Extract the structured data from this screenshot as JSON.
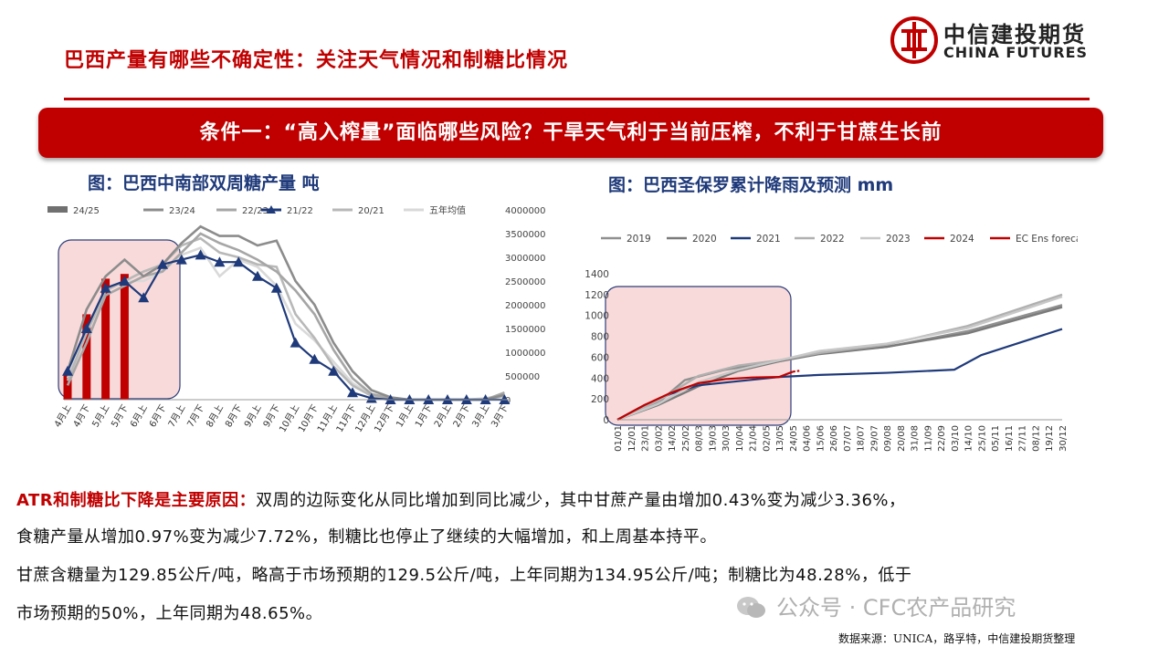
{
  "title": "巴西产量有哪些不确定性：关注天气情况和制糖比情况",
  "logo": {
    "cn": "中信建投期货",
    "en": "CHINA FUTURES"
  },
  "banner": "条件一：“高入榨量”面临哪些风险？干旱天气利于当前压榨，不利于甘蔗生长前",
  "colors": {
    "accent": "#c00000",
    "navy": "#1f3a7a",
    "highlight_fill": "#f9dada",
    "highlight_border": "#2c3e7a"
  },
  "chart_data": [
    {
      "type": "bar+line",
      "title": "图：巴西中南部双周糖产量 吨",
      "categories": [
        "4月上",
        "4月下",
        "5月上",
        "5月下",
        "6月上",
        "6月下",
        "7月上",
        "7月下",
        "8月上",
        "8月下",
        "9月上",
        "9月下",
        "10月上",
        "10月下",
        "11月上",
        "11月下",
        "12月上",
        "12月下",
        "1月上",
        "1月下",
        "2月上",
        "2月下",
        "3月上",
        "3月下"
      ],
      "ylim": [
        0,
        4000000
      ],
      "yticks": [
        "4000000",
        "3500000",
        "3000000",
        "2500000",
        "2000000",
        "1500000",
        "1000000",
        "500000",
        "0"
      ],
      "legend": [
        "24/25",
        "23/24",
        "22/23",
        "21/22",
        "20/21",
        "五年均值"
      ],
      "series": [
        {
          "name": "24/25",
          "kind": "bar",
          "color": "#c00000",
          "values": [
            550000,
            1800000,
            2550000,
            2650000,
            null,
            null,
            null,
            null,
            null,
            null,
            null,
            null,
            null,
            null,
            null,
            null,
            null,
            null,
            null,
            null,
            null,
            null,
            null,
            null
          ]
        },
        {
          "name": "23/24",
          "kind": "line",
          "color": "#8c8c8c",
          "values": [
            600000,
            1900000,
            2600000,
            2950000,
            2600000,
            2850000,
            3300000,
            3650000,
            3450000,
            3450000,
            3250000,
            3350000,
            2500000,
            2000000,
            1200000,
            600000,
            200000,
            50000,
            0,
            0,
            0,
            0,
            0,
            100000
          ]
        },
        {
          "name": "22/23",
          "kind": "line",
          "color": "#a6a6a6",
          "values": [
            300000,
            1200000,
            2200000,
            2400000,
            2600000,
            2700000,
            3100000,
            3500000,
            3300000,
            3150000,
            2950000,
            2700000,
            2300000,
            1800000,
            1050000,
            450000,
            120000,
            30000,
            0,
            0,
            0,
            0,
            0,
            150000
          ]
        },
        {
          "name": "21/22",
          "kind": "marker",
          "color": "#1f3a7a",
          "values": [
            600000,
            1500000,
            2350000,
            2500000,
            2150000,
            2850000,
            2950000,
            3050000,
            2900000,
            2900000,
            2600000,
            2350000,
            1200000,
            850000,
            600000,
            150000,
            30000,
            0,
            0,
            0,
            0,
            0,
            0,
            0
          ]
        },
        {
          "name": "20/21",
          "kind": "line",
          "color": "#b8b8b8",
          "values": [
            400000,
            1400000,
            2300000,
            2500000,
            2700000,
            2850000,
            3250000,
            3400000,
            3100000,
            3000000,
            2850000,
            2800000,
            1800000,
            1300000,
            700000,
            300000,
            80000,
            0,
            0,
            0,
            0,
            0,
            0,
            80000
          ]
        },
        {
          "name": "五年均值",
          "kind": "line",
          "color": "#d9d9d9",
          "values": [
            450000,
            1450000,
            2300000,
            2500000,
            2500000,
            2700000,
            3050000,
            3200000,
            2600000,
            2950000,
            2800000,
            2400000,
            1600000,
            1250000,
            800000,
            350000,
            100000,
            20000,
            0,
            0,
            0,
            0,
            30000,
            100000
          ]
        }
      ]
    },
    {
      "type": "line",
      "title": "图：巴西圣保罗累计降雨及预测 mm",
      "xticks": [
        "01/01",
        "12/01",
        "23/01",
        "03/02",
        "14/02",
        "25/02",
        "08/03",
        "19/03",
        "30/03",
        "10/04",
        "21/04",
        "02/05",
        "13/05",
        "24/05",
        "04/06",
        "15/06",
        "26/06",
        "07/07",
        "18/07",
        "29/07",
        "09/08",
        "20/08",
        "31/08",
        "11/09",
        "22/09",
        "03/10",
        "14/10",
        "25/10",
        "05/11",
        "16/11",
        "27/11",
        "08/12",
        "19/12",
        "30/12"
      ],
      "ylim": [
        0,
        1400
      ],
      "yticks": [
        "1400",
        "1200",
        "1000",
        "800",
        "600",
        "400",
        "200",
        "0"
      ],
      "legend": [
        "2019",
        "2020",
        "2021",
        "2022",
        "2023",
        "2024",
        "EC Ens forecast"
      ],
      "series": [
        {
          "name": "2019",
          "color": "#909090",
          "x": [
            0,
            3,
            5,
            8,
            12,
            15,
            20,
            26,
            33
          ],
          "y": [
            0,
            160,
            380,
            480,
            560,
            640,
            700,
            850,
            1100
          ]
        },
        {
          "name": "2020",
          "color": "#7a7a7a",
          "x": [
            0,
            3,
            6,
            9,
            12,
            15,
            20,
            26,
            33
          ],
          "y": [
            0,
            140,
            320,
            470,
            560,
            630,
            700,
            830,
            1080
          ]
        },
        {
          "name": "2021",
          "color": "#1f3a7a",
          "x": [
            0,
            2,
            4,
            6,
            9,
            12,
            15,
            20,
            25,
            27,
            33
          ],
          "y": [
            0,
            140,
            250,
            330,
            370,
            410,
            430,
            450,
            480,
            620,
            870
          ]
        },
        {
          "name": "2022",
          "color": "#b0b0b0",
          "x": [
            0,
            3,
            6,
            9,
            12,
            15,
            20,
            26,
            33
          ],
          "y": [
            0,
            180,
            420,
            520,
            570,
            640,
            720,
            900,
            1200
          ]
        },
        {
          "name": "2023",
          "color": "#c8c8c8",
          "x": [
            0,
            3,
            6,
            9,
            12,
            15,
            20,
            26,
            33
          ],
          "y": [
            0,
            150,
            360,
            480,
            570,
            660,
            730,
            880,
            1180
          ]
        },
        {
          "name": "2024",
          "color": "#c00000",
          "x": [
            0,
            2,
            4,
            6,
            8,
            10,
            12,
            13
          ],
          "y": [
            0,
            140,
            260,
            350,
            390,
            405,
            410,
            460
          ]
        },
        {
          "name": "EC Ens forecast",
          "color": "#c00000",
          "x": [
            13,
            13.5
          ],
          "y": [
            460,
            470
          ]
        }
      ]
    }
  ],
  "paragraphs": {
    "lead": "ATR和制糖比下降是主要原因：",
    "line1": "双周的边际变化从同比增加到同比减少，其中甘蔗产量由增加0.43%变为减少3.36%，",
    "line2": "食糖产量从增加0.97%变为减少7.72%，制糖比也停止了继续的大幅增加，和上周基本持平。",
    "line3": "甘蔗含糖量为129.85公斤/吨，略高于市场预期的129.5公斤/吨，上年同期为134.95公斤/吨；制糖比为48.28%，低于",
    "line4": "市场预期的50%，上年同期为48.65%。"
  },
  "watermark": "公众号 · CFC农产品研究",
  "source": "数据来源：UNICA，路孚特，中信建投期货整理"
}
